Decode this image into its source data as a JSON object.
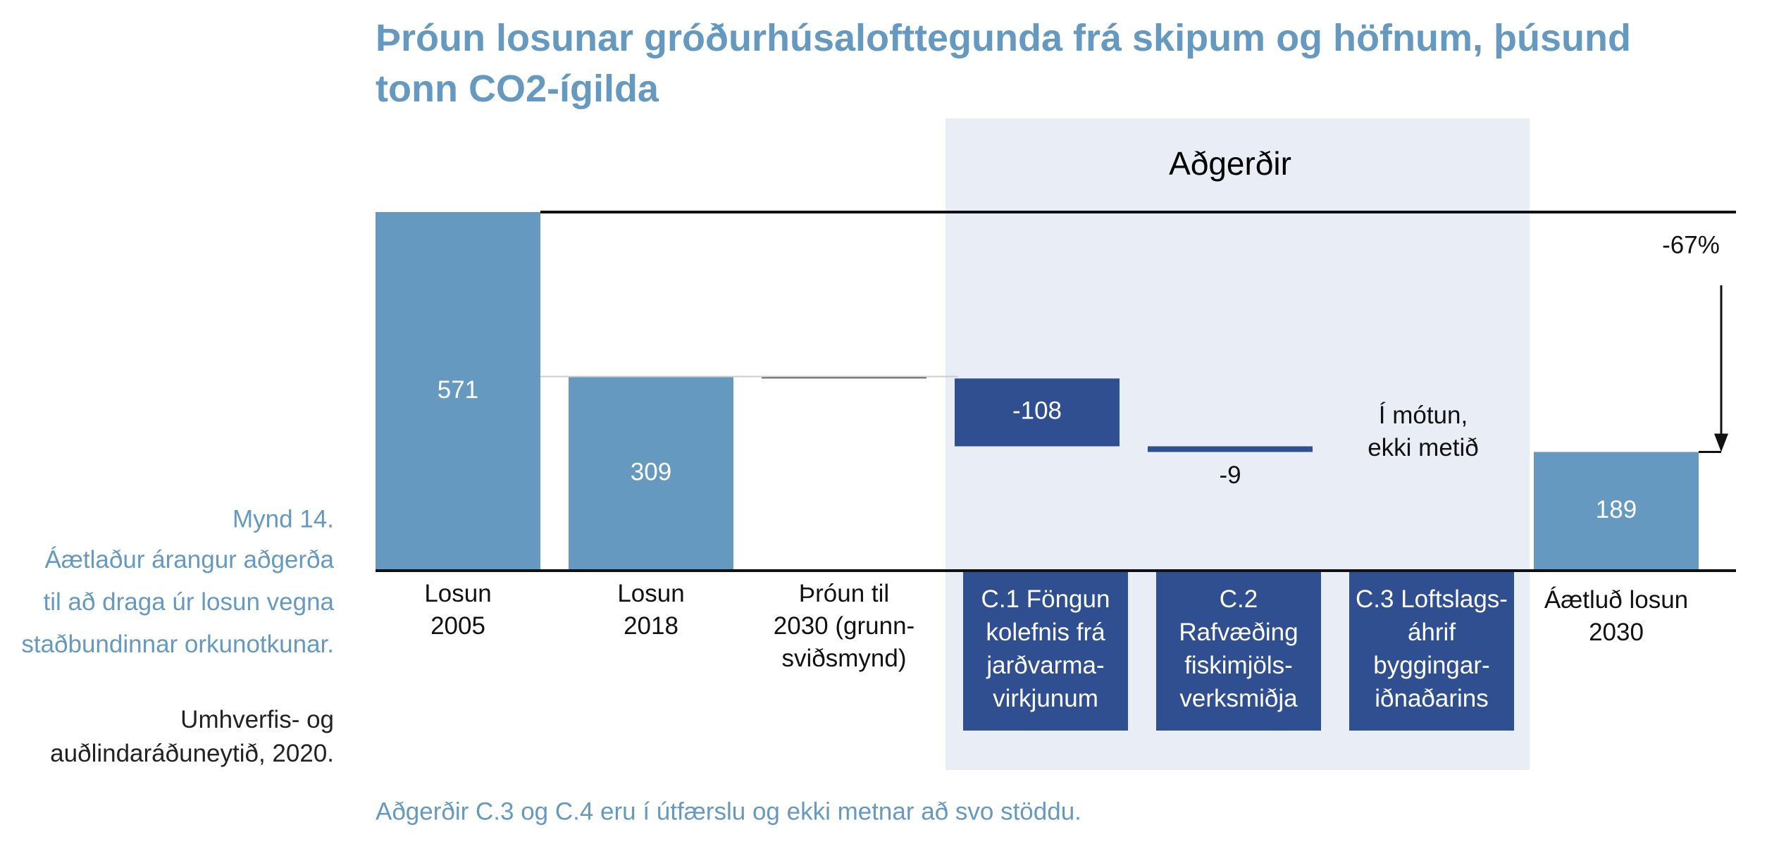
{
  "chart_data": {
    "type": "waterfall",
    "title": "Þróun losunar gróðurhúsalofttegunda frá skipum og höfnum, þúsund tonn CO2-ígilda",
    "categories": [
      "Losun\n2005",
      "Losun\n2018",
      "Þróun til\n2030 (grunn-\nsviðsmynd)",
      "C.1 Föngun\nkolefnis frá\njarðvarma-\nvirkjunum",
      "C.2\nRafvæðing\nfiskimjöls-\nverksmiðja",
      "C.3 Loftslags-\náhrif\nbyggingar-\niðnaðarins",
      "Áætluð losun\n2030"
    ],
    "values": [
      571,
      309,
      -3,
      -108,
      -9,
      null,
      189
    ],
    "value_labels": [
      "571",
      "309",
      null,
      "-108",
      "-9",
      null,
      "189"
    ],
    "kinds": [
      "total",
      "total",
      "baseline",
      "measure",
      "measure",
      "measure",
      "total"
    ],
    "colors": [
      "#6699c0",
      "#6699c0",
      "#5f5f5f",
      "#2f4f90",
      "#2f4f90",
      "#2f4f90",
      "#6699c0"
    ],
    "annotations": {
      "group_label": "Aðgerðir",
      "change": "-67%",
      "pending": "Í mótun,\nekki metið"
    },
    "caption": {
      "figure": "Mynd 14.",
      "text": "Áætlaður árangur aðgerða\ntil að draga úr losun vegna\nstaðbundinnar orkunotkunar.",
      "source": "Umhverfis- og\nauðlindaráðuneytið, 2020."
    },
    "footnote": "Aðgerðir C.3 og C.4 eru í útfærslu og ekki metnar að svo stöddu."
  }
}
